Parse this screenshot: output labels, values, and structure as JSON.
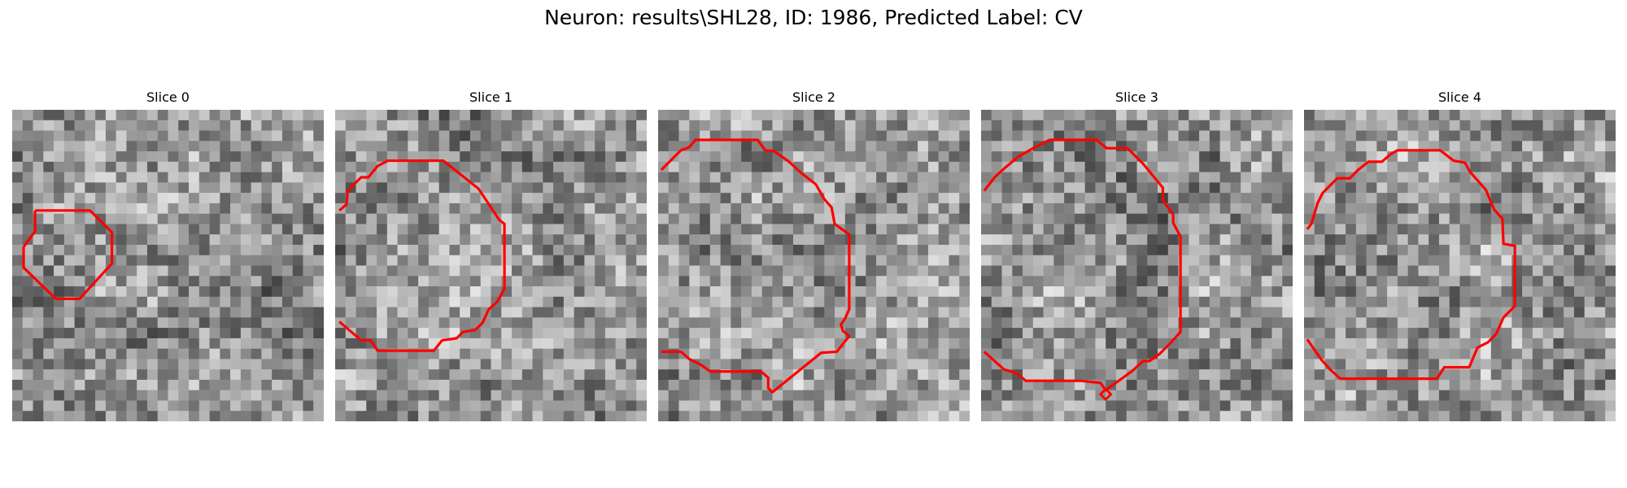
{
  "figure": {
    "title": "Neuron: results\\SHL28, ID: 1986, Predicted Label: CV"
  },
  "colors": {
    "contour": "#ff0000",
    "background": "#ffffff"
  },
  "panels": [
    {
      "title": "Slice 0"
    },
    {
      "title": "Slice 1"
    },
    {
      "title": "Slice 2"
    },
    {
      "title": "Slice 3"
    },
    {
      "title": "Slice 4"
    }
  ]
}
